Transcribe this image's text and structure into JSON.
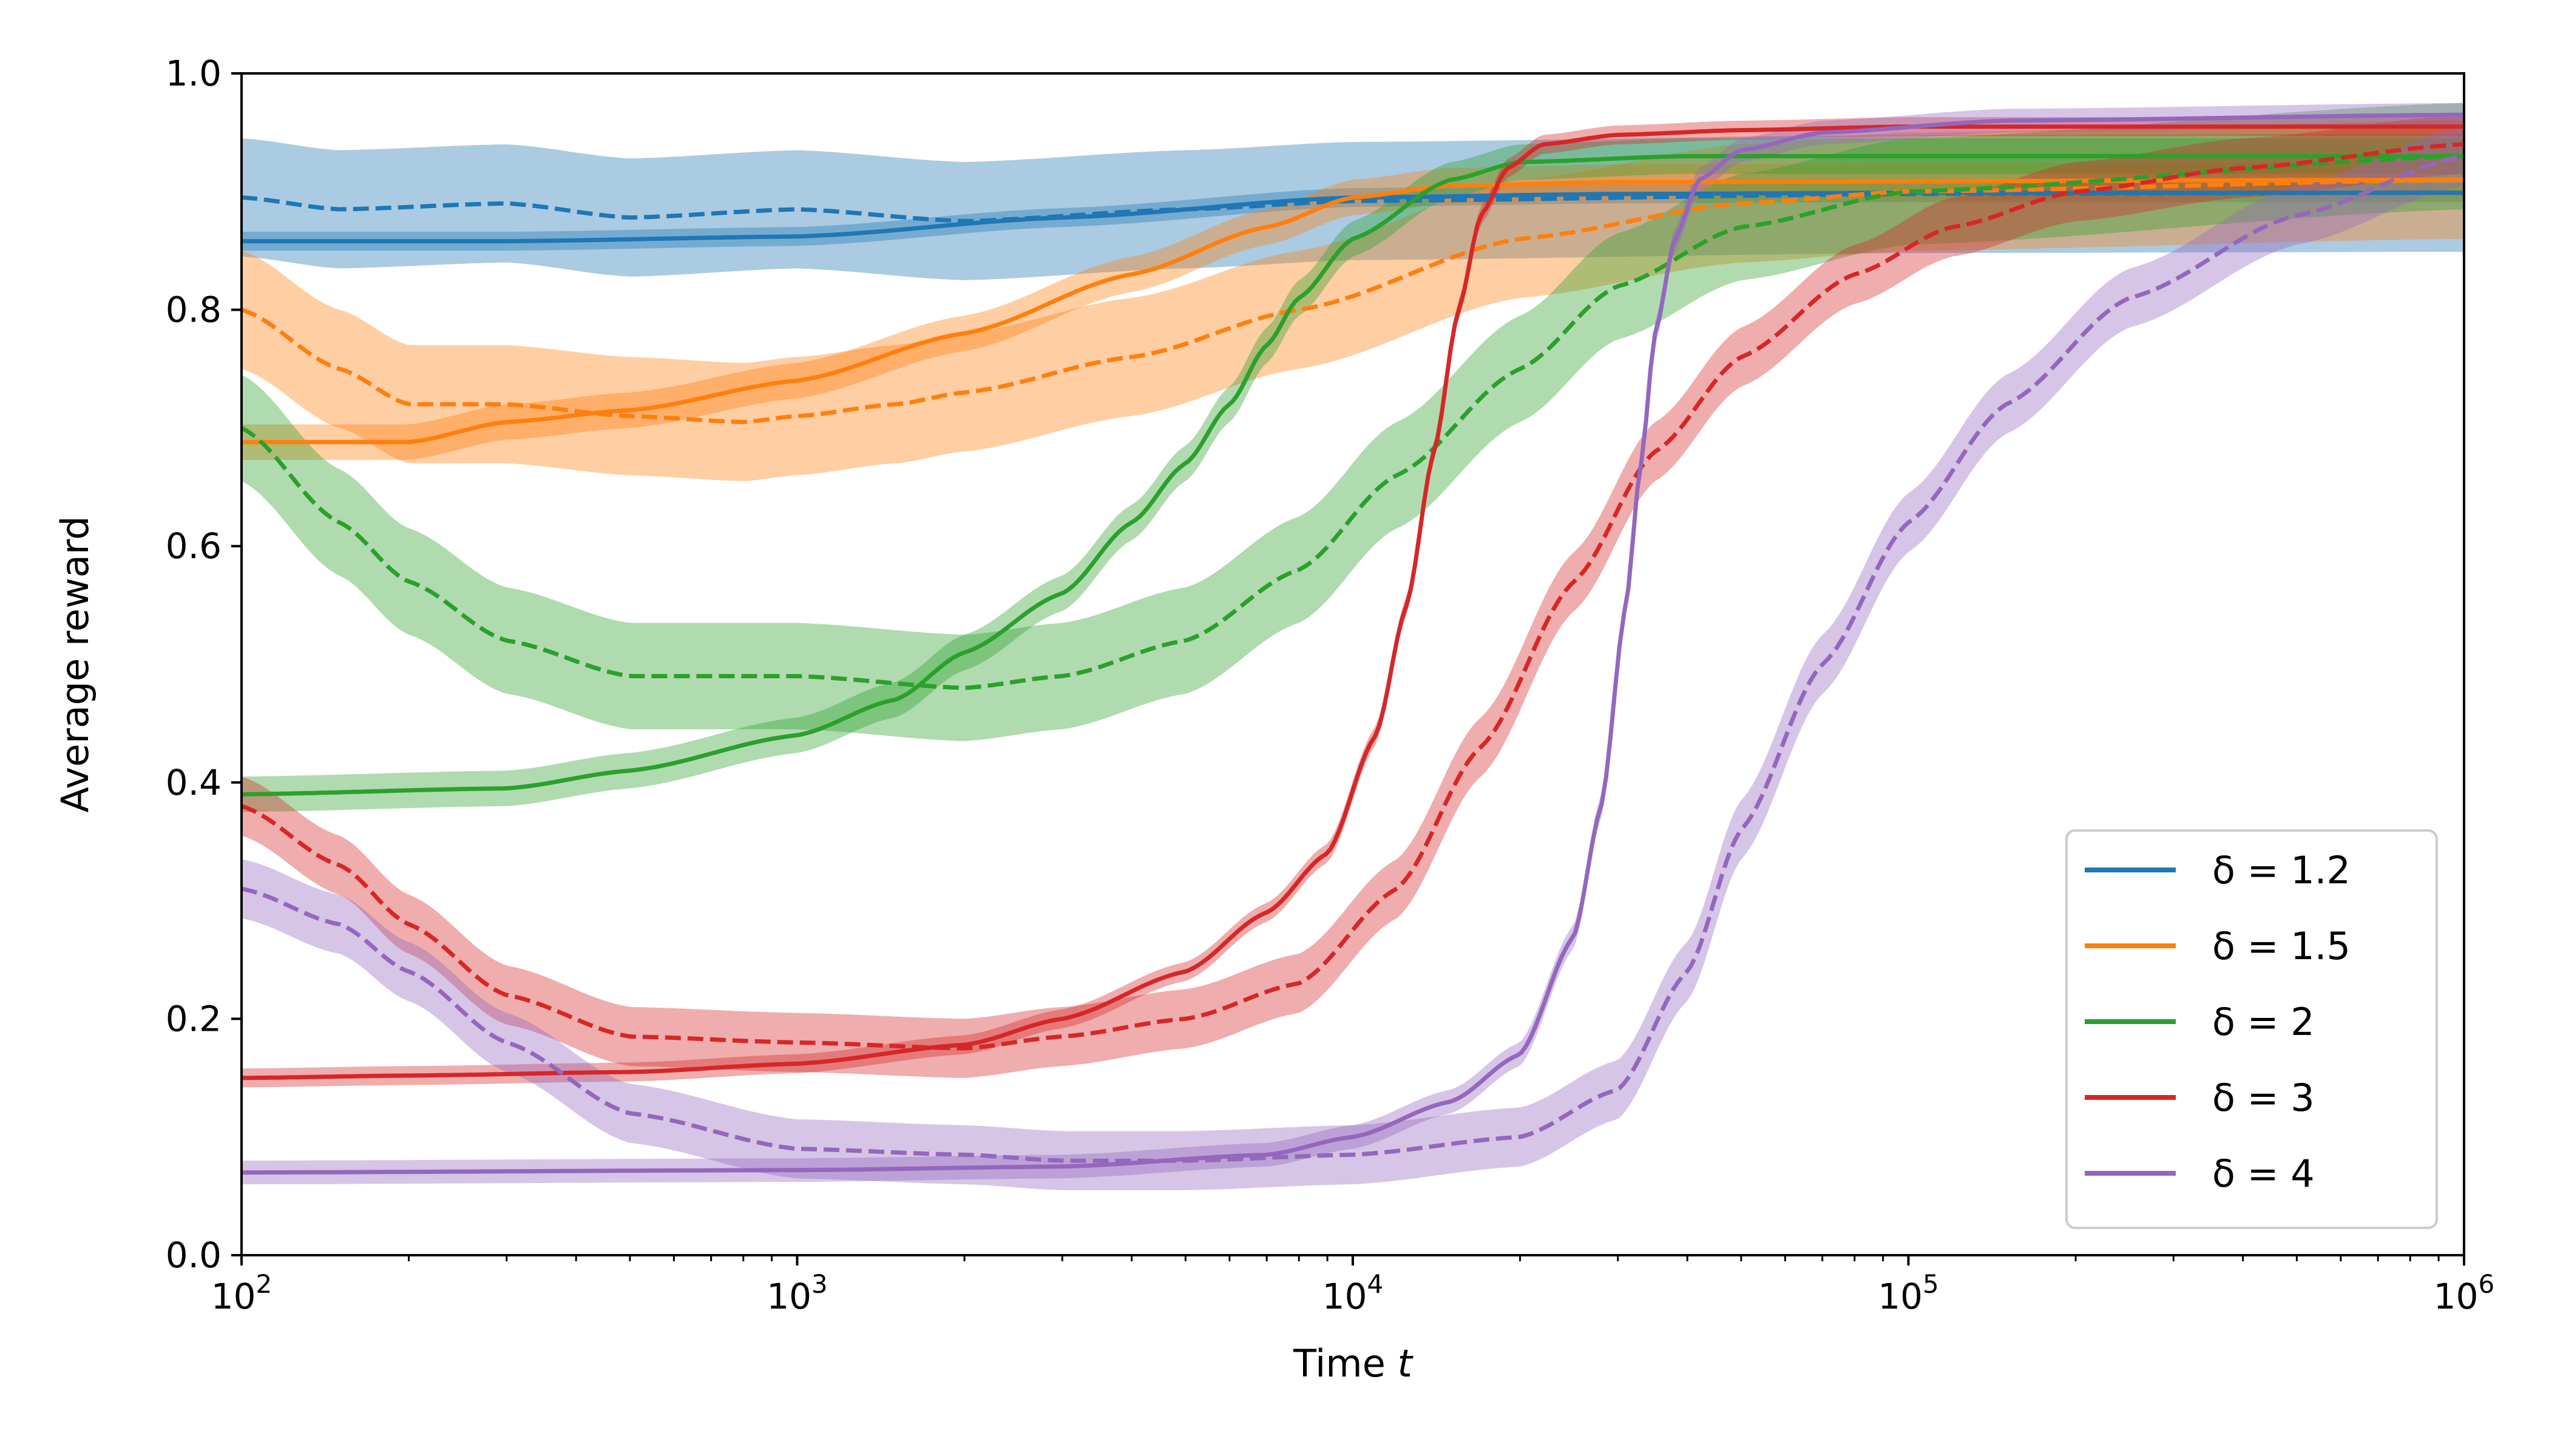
{
  "chart_data": {
    "type": "line",
    "xscale": "log",
    "xlabel": "Time",
    "xlabel_var": "t",
    "ylabel": "Average reward",
    "xlim": [
      100,
      1000000
    ],
    "ylim": [
      0.0,
      1.0
    ],
    "xticks": [
      {
        "value": 100,
        "base": "10",
        "exp": "2"
      },
      {
        "value": 1000,
        "base": "10",
        "exp": "3"
      },
      {
        "value": 10000,
        "base": "10",
        "exp": "4"
      },
      {
        "value": 100000,
        "base": "10",
        "exp": "5"
      },
      {
        "value": 1000000,
        "base": "10",
        "exp": "6"
      }
    ],
    "yticks": [
      {
        "value": 0.0,
        "label": "0.0"
      },
      {
        "value": 0.2,
        "label": "0.2"
      },
      {
        "value": 0.4,
        "label": "0.4"
      },
      {
        "value": 0.6,
        "label": "0.6"
      },
      {
        "value": 0.8,
        "label": "0.8"
      },
      {
        "value": 1.0,
        "label": "1.0"
      }
    ],
    "legend_position": "bottom-right",
    "series": [
      {
        "name": "δ = 1.2",
        "color": "#1f77b4",
        "solid": {
          "x": [
            100,
            300,
            1000,
            3000,
            10000,
            30000,
            100000,
            1000000
          ],
          "y": [
            0.858,
            0.858,
            0.862,
            0.878,
            0.895,
            0.898,
            0.899,
            0.899
          ],
          "band": 0.008
        },
        "dashed": {
          "x": [
            100,
            150,
            300,
            500,
            1000,
            2000,
            5000,
            10000,
            100000,
            1000000
          ],
          "y": [
            0.895,
            0.885,
            0.89,
            0.878,
            0.885,
            0.875,
            0.885,
            0.892,
            0.898,
            0.899
          ],
          "band": 0.05
        }
      },
      {
        "name": "δ = 1.5",
        "color": "#ff7f0e",
        "solid": {
          "x": [
            100,
            200,
            300,
            500,
            1000,
            2000,
            4000,
            7000,
            10000,
            15000,
            30000,
            1000000
          ],
          "y": [
            0.688,
            0.688,
            0.705,
            0.715,
            0.74,
            0.78,
            0.83,
            0.87,
            0.895,
            0.905,
            0.908,
            0.91
          ],
          "band": 0.015
        },
        "dashed": {
          "x": [
            100,
            150,
            200,
            300,
            500,
            800,
            1000,
            1500,
            2000,
            4000,
            8000,
            20000,
            50000,
            100000,
            1000000
          ],
          "y": [
            0.8,
            0.75,
            0.72,
            0.72,
            0.71,
            0.705,
            0.71,
            0.72,
            0.73,
            0.76,
            0.8,
            0.86,
            0.89,
            0.9,
            0.91
          ],
          "band": 0.05
        }
      },
      {
        "name": "δ = 2",
        "color": "#2ca02c",
        "solid": {
          "x": [
            100,
            300,
            500,
            1000,
            1500,
            2000,
            3000,
            4000,
            5000,
            6000,
            7000,
            8000,
            10000,
            15000,
            20000,
            40000,
            1000000
          ],
          "y": [
            0.39,
            0.395,
            0.41,
            0.44,
            0.47,
            0.51,
            0.56,
            0.62,
            0.67,
            0.72,
            0.77,
            0.81,
            0.86,
            0.91,
            0.925,
            0.93,
            0.93
          ],
          "band": 0.015
        },
        "dashed": {
          "x": [
            100,
            150,
            200,
            300,
            500,
            1000,
            2000,
            3000,
            5000,
            8000,
            12000,
            20000,
            30000,
            50000,
            100000,
            1000000
          ],
          "y": [
            0.7,
            0.62,
            0.57,
            0.52,
            0.49,
            0.49,
            0.48,
            0.49,
            0.52,
            0.58,
            0.66,
            0.75,
            0.82,
            0.87,
            0.9,
            0.93
          ],
          "band": 0.045
        }
      },
      {
        "name": "δ = 3",
        "color": "#d62728",
        "solid": {
          "x": [
            100,
            200,
            500,
            1000,
            2000,
            3000,
            5000,
            7000,
            9000,
            11000,
            12500,
            14000,
            15500,
            17000,
            19000,
            22000,
            30000,
            50000,
            100000,
            1000000
          ],
          "y": [
            0.15,
            0.152,
            0.155,
            0.162,
            0.178,
            0.2,
            0.24,
            0.29,
            0.34,
            0.44,
            0.55,
            0.68,
            0.8,
            0.88,
            0.92,
            0.94,
            0.948,
            0.952,
            0.955,
            0.955
          ],
          "band": 0.008
        },
        "dashed": {
          "x": [
            100,
            150,
            200,
            300,
            500,
            1000,
            2000,
            3000,
            5000,
            8000,
            12000,
            17000,
            25000,
            35000,
            50000,
            80000,
            120000,
            200000,
            400000,
            1000000
          ],
          "y": [
            0.38,
            0.33,
            0.28,
            0.22,
            0.185,
            0.18,
            0.175,
            0.185,
            0.2,
            0.23,
            0.31,
            0.43,
            0.57,
            0.68,
            0.76,
            0.83,
            0.87,
            0.9,
            0.92,
            0.94
          ],
          "band": 0.025
        }
      },
      {
        "name": "δ = 4",
        "color": "#9467bd",
        "solid": {
          "x": [
            100,
            1000,
            3000,
            7000,
            10000,
            15000,
            20000,
            25000,
            28000,
            31000,
            33000,
            35000,
            38000,
            42000,
            50000,
            70000,
            150000,
            1000000
          ],
          "y": [
            0.07,
            0.072,
            0.075,
            0.085,
            0.1,
            0.13,
            0.17,
            0.27,
            0.38,
            0.55,
            0.67,
            0.78,
            0.86,
            0.91,
            0.935,
            0.95,
            0.96,
            0.965
          ],
          "band": 0.01
        },
        "dashed": {
          "x": [
            100,
            150,
            200,
            300,
            500,
            1000,
            2000,
            3000,
            5000,
            10000,
            20000,
            30000,
            40000,
            50000,
            70000,
            100000,
            150000,
            250000,
            500000,
            1000000
          ],
          "y": [
            0.31,
            0.28,
            0.24,
            0.18,
            0.12,
            0.09,
            0.085,
            0.08,
            0.08,
            0.085,
            0.1,
            0.14,
            0.24,
            0.36,
            0.5,
            0.62,
            0.72,
            0.81,
            0.88,
            0.93
          ],
          "band": 0.025
        }
      }
    ]
  }
}
